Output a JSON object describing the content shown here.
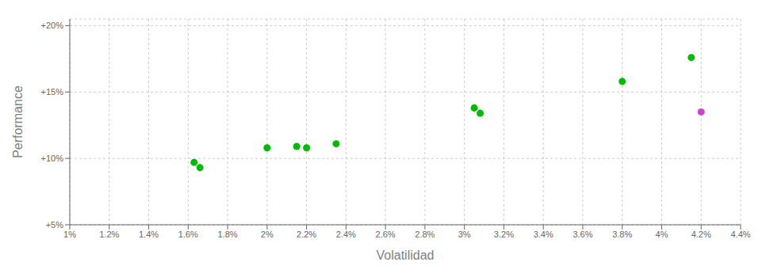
{
  "chart_data": {
    "type": "scatter",
    "xlabel": "Volatilidad",
    "ylabel": "Performance",
    "xlim": [
      0.01,
      0.044
    ],
    "ylim": [
      0.05,
      0.205
    ],
    "xticks": [
      {
        "value": 0.01,
        "label": "1%"
      },
      {
        "value": 0.012,
        "label": "1.2%"
      },
      {
        "value": 0.014,
        "label": "1.4%"
      },
      {
        "value": 0.016,
        "label": "1.6%"
      },
      {
        "value": 0.018,
        "label": "1.8%"
      },
      {
        "value": 0.02,
        "label": "2%"
      },
      {
        "value": 0.022,
        "label": "2.2%"
      },
      {
        "value": 0.024,
        "label": "2.4%"
      },
      {
        "value": 0.026,
        "label": "2.6%"
      },
      {
        "value": 0.028,
        "label": "2.8%"
      },
      {
        "value": 0.03,
        "label": "3%"
      },
      {
        "value": 0.032,
        "label": "3.2%"
      },
      {
        "value": 0.034,
        "label": "3.4%"
      },
      {
        "value": 0.036,
        "label": "3.6%"
      },
      {
        "value": 0.038,
        "label": "3.8%"
      },
      {
        "value": 0.04,
        "label": "4%"
      },
      {
        "value": 0.042,
        "label": "4.2%"
      },
      {
        "value": 0.044,
        "label": "4.4%"
      }
    ],
    "yticks": [
      {
        "value": 0.05,
        "label": "+5%"
      },
      {
        "value": 0.1,
        "label": "+10%"
      },
      {
        "value": 0.15,
        "label": "+15%"
      },
      {
        "value": 0.2,
        "label": "+20%"
      }
    ],
    "grid": true,
    "series": [
      {
        "color": "#00bb00",
        "x": [
          0.0163,
          0.0166,
          0.02,
          0.0215,
          0.022,
          0.0235,
          0.0305,
          0.0308,
          0.038,
          0.0415
        ],
        "values": [
          0.097,
          0.093,
          0.108,
          0.109,
          0.108,
          0.111,
          0.138,
          0.134,
          0.158,
          0.176
        ]
      },
      {
        "color": "#cc44cc",
        "x": [
          0.042
        ],
        "values": [
          0.135
        ]
      }
    ]
  }
}
